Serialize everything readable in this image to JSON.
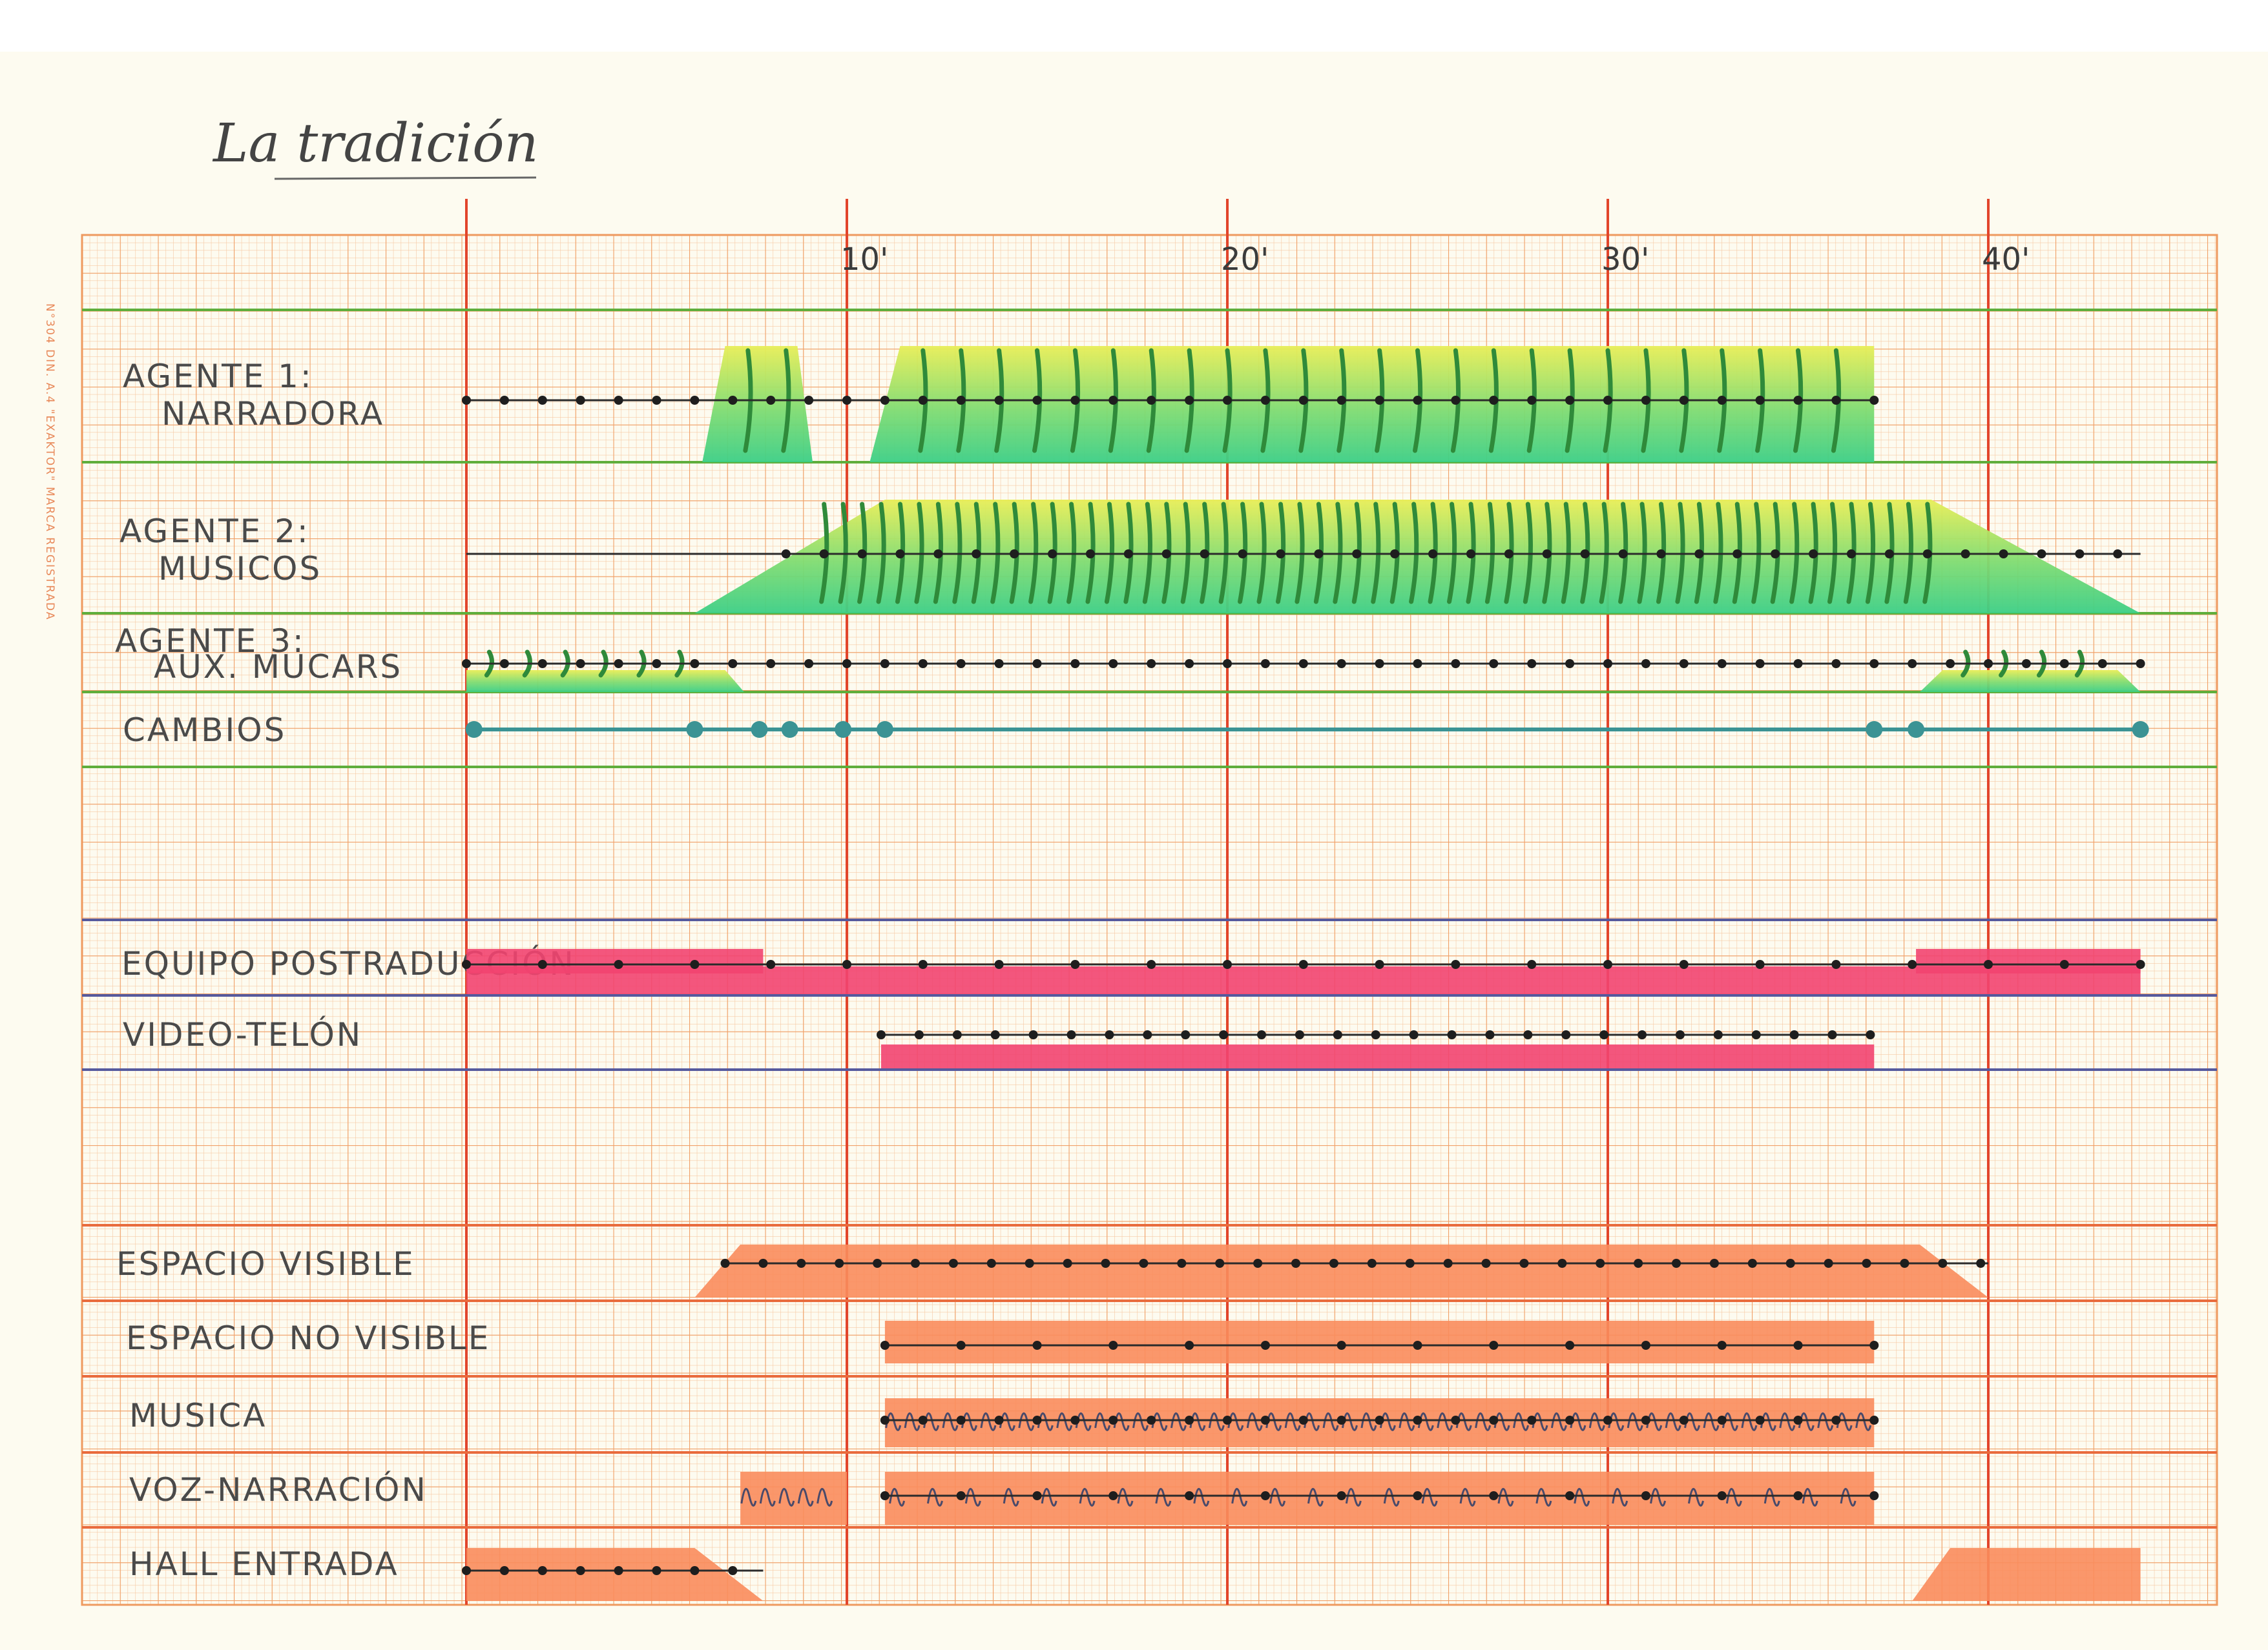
{
  "document": {
    "title": "La tradición",
    "paper_brand": "N°304 DIN. A.4 \"EXAKTOR\" MARCA REGISTRADA"
  },
  "timeline": {
    "unit": "minutes",
    "range": [
      0,
      44
    ],
    "ticks": [
      {
        "value": 10,
        "label": "10'"
      },
      {
        "value": 20,
        "label": "20'"
      },
      {
        "value": 30,
        "label": "30'"
      },
      {
        "value": 40,
        "label": "40'"
      }
    ]
  },
  "colors": {
    "paper": "#fdfbf0",
    "grid_fine": "#f4b889",
    "grid_major": "#ee9a5f",
    "grid_red": "#e2452b",
    "green_top": "#e8ee57",
    "green_bottom": "#3ccf86",
    "green_mark": "#2f8a3a",
    "teal_dot": "#3b9394",
    "pink": "#f24470",
    "orange": "#fa8c5c",
    "separator_green": "#5fae3c",
    "separator_blue": "#555a9e",
    "separator_orange": "#e96b3d"
  },
  "lanes": [
    {
      "id": "agente1",
      "label_lines": [
        "AGENTE 1:",
        "NARRADORA"
      ],
      "style": "green",
      "shapes": [
        {
          "start": 6.2,
          "end": 9.1,
          "ramp_in": 0.6,
          "ramp_out": 0.4
        },
        {
          "start": 10.6,
          "end": 37.0,
          "ramp_in": 0.8,
          "ramp_out": 0
        }
      ],
      "line": [
        0,
        37
      ],
      "dot_start": 0,
      "dot_step": 1
    },
    {
      "id": "agente2",
      "label_lines": [
        "AGENTE 2:",
        "MUSICOS"
      ],
      "style": "green",
      "shapes": [
        {
          "start": 6.0,
          "end": 44.0,
          "ramp_in": 5.0,
          "ramp_out": 5.5
        }
      ],
      "line": [
        0,
        44
      ],
      "dot_start": 8.4,
      "dot_step": 1
    },
    {
      "id": "agente3",
      "label_lines": [
        "AGENTE 3:",
        "AUX. MUCARS"
      ],
      "style": "green",
      "shapes": [
        {
          "start": 0,
          "end": 7.3,
          "ramp_in": 0,
          "ramp_out": 0.5
        },
        {
          "start": 38.2,
          "end": 44.0,
          "ramp_in": 0.6,
          "ramp_out": 0.6
        }
      ],
      "line": [
        0,
        44
      ],
      "dot_start": 0,
      "dot_step": 1
    },
    {
      "id": "cambios",
      "label_lines": [
        "CAMBIOS"
      ],
      "style": "teal",
      "points": [
        0.2,
        6.0,
        7.7,
        8.5,
        9.9,
        11.0,
        37.0,
        38.1,
        44.0
      ]
    },
    {
      "id": "equipo",
      "label_lines": [
        "EQUIPO POSTRADUCCIÓN"
      ],
      "style": "pink",
      "shapes": [
        {
          "start": 0,
          "end": 44.0
        }
      ],
      "line": [
        0,
        44
      ],
      "dot_start": 0,
      "dot_step": 2
    },
    {
      "id": "video",
      "label_lines": [
        "VIDEO-TELÓN"
      ],
      "style": "pink",
      "shapes": [
        {
          "start": 10.9,
          "end": 37.0
        }
      ],
      "line": [
        10.9,
        37.0
      ],
      "dot_start": 10.9,
      "dot_step": 1
    },
    {
      "id": "espacio_visible",
      "label_lines": [
        "ESPACIO VISIBLE"
      ],
      "style": "orange",
      "shapes": [
        {
          "start": 6.0,
          "end": 40.0,
          "ramp_in": 1.2,
          "ramp_out": 1.8
        }
      ],
      "line": [
        6.8,
        40.0
      ],
      "dot_start": 6.8,
      "dot_step": 1
    },
    {
      "id": "espacio_no_visible",
      "label_lines": [
        "ESPACIO NO VISIBLE"
      ],
      "style": "orange",
      "shapes": [
        {
          "start": 11.0,
          "end": 37.0
        }
      ],
      "line": [
        11.0,
        37.0
      ],
      "dot_start": 11.0,
      "dot_step": 2
    },
    {
      "id": "musica",
      "label_lines": [
        "MUSICA"
      ],
      "style": "orange",
      "shapes": [
        {
          "start": 11.0,
          "end": 37.0
        }
      ],
      "line": [
        11.0,
        37.0
      ],
      "dot_start": 11.0,
      "dot_step": 1
    },
    {
      "id": "voz",
      "label_lines": [
        "VOZ-NARRACIÓN"
      ],
      "style": "orange",
      "shapes": [
        {
          "start": 7.2,
          "end": 10.0
        },
        {
          "start": 11.0,
          "end": 37.0
        }
      ],
      "line": [
        11.0,
        37.0
      ],
      "dot_start": 11.0,
      "dot_step": 2
    },
    {
      "id": "hall",
      "label_lines": [
        "HALL ENTRADA"
      ],
      "style": "orange",
      "shapes": [
        {
          "start": 0,
          "end": 7.8,
          "ramp_in": 0,
          "ramp_out": 1.8
        },
        {
          "start": 38.0,
          "end": 44.0,
          "ramp_in": 1.0,
          "ramp_out": 0
        }
      ],
      "line": [
        0,
        7.8
      ],
      "dot_start": 0,
      "dot_step": 1
    }
  ]
}
